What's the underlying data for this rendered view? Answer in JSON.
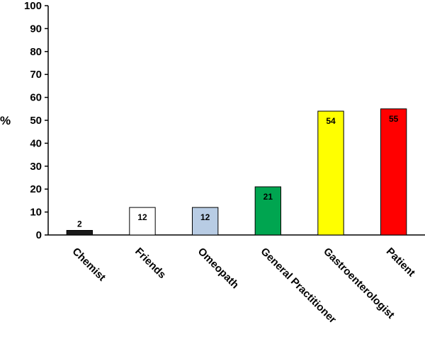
{
  "chart_data": {
    "type": "bar",
    "title": "",
    "xlabel": "",
    "ylabel": "%",
    "ylim": [
      0,
      100
    ],
    "yticks": [
      0,
      10,
      20,
      30,
      40,
      50,
      60,
      70,
      80,
      90,
      100
    ],
    "grid": false,
    "categories": [
      "Chemist",
      "Friends",
      "Omeopath",
      "General Practitioner",
      "Gastroenterologist",
      "Patient"
    ],
    "values": [
      2,
      12,
      12,
      21,
      54,
      55
    ],
    "colors": [
      "#1a1a1a",
      "#ffffff",
      "#b8cce4",
      "#00a550",
      "#ffff00",
      "#ff0000"
    ],
    "data_labels": [
      "2",
      "12",
      "12",
      "21",
      "54",
      "55"
    ]
  }
}
